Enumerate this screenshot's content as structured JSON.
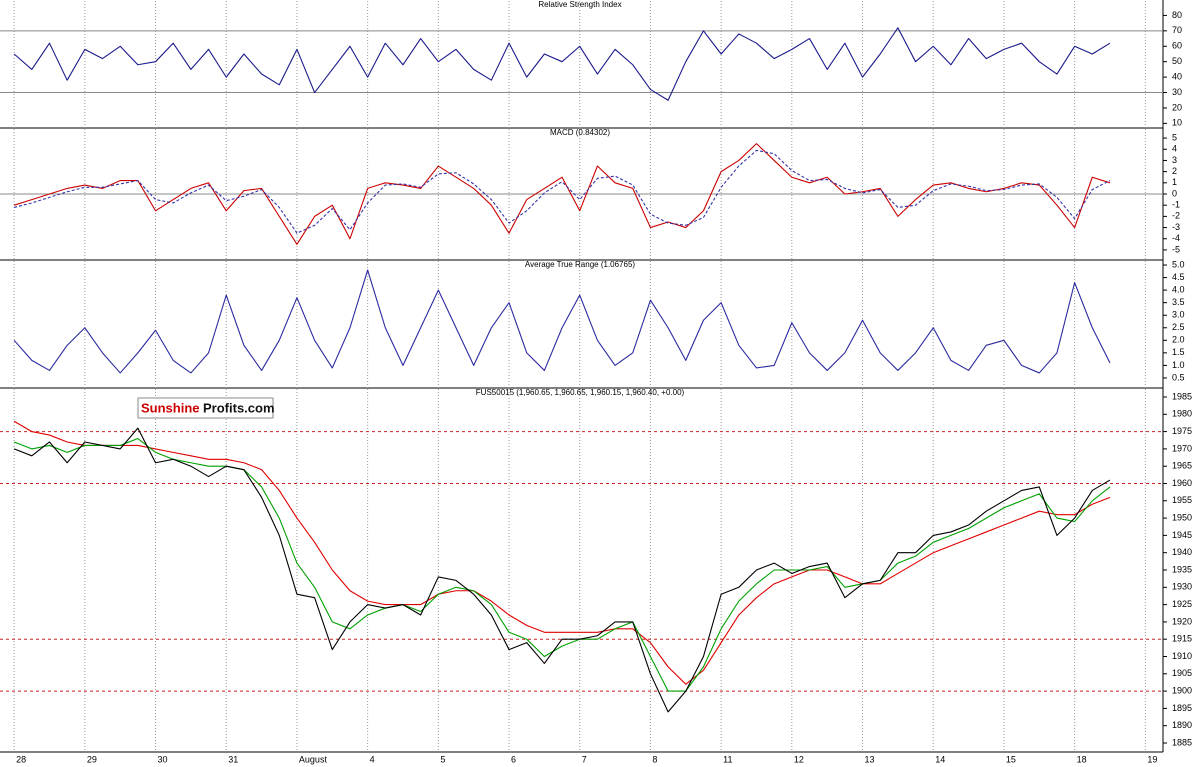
{
  "chart_data": [
    {
      "type": "line",
      "title": "Relative Strength Index",
      "xlim": [
        -0.2,
        16.25
      ],
      "ylim": [
        7,
        90
      ],
      "yticks": [
        10,
        20,
        30,
        40,
        50,
        60,
        70,
        80
      ],
      "reference_lines": [
        70,
        30
      ],
      "reference_color": "#888888",
      "reference_dashed": false,
      "x": [
        0,
        0.25,
        0.5,
        0.75,
        1,
        1.25,
        1.5,
        1.75,
        2,
        2.25,
        2.5,
        2.75,
        3,
        3.25,
        3.5,
        3.75,
        4,
        4.25,
        4.5,
        4.75,
        5,
        5.25,
        5.5,
        5.75,
        6,
        6.25,
        6.5,
        6.75,
        7,
        7.25,
        7.5,
        7.75,
        8,
        8.25,
        8.5,
        8.75,
        9,
        9.25,
        9.5,
        9.75,
        10,
        10.25,
        10.5,
        10.75,
        11,
        11.25,
        11.5,
        11.75,
        12,
        12.25,
        12.5,
        12.75,
        13,
        13.25,
        13.5,
        13.75,
        14,
        14.25,
        14.5,
        14.75,
        15,
        15.25,
        15.5
      ],
      "series": [
        {
          "name": "RSI",
          "color": "#1a1a8c",
          "dashed": false,
          "values": [
            55,
            45,
            62,
            38,
            58,
            52,
            60,
            48,
            50,
            62,
            45,
            58,
            40,
            55,
            42,
            35,
            58,
            30,
            45,
            60,
            40,
            62,
            48,
            65,
            50,
            58,
            45,
            38,
            62,
            40,
            55,
            50,
            60,
            42,
            58,
            48,
            32,
            25,
            50,
            70,
            55,
            68,
            62,
            52,
            58,
            65,
            45,
            62,
            40,
            55,
            72,
            50,
            60,
            48,
            65,
            52,
            58,
            62,
            50,
            42,
            60,
            55,
            62
          ]
        }
      ]
    },
    {
      "type": "line",
      "title": "MACD (0.84302)",
      "xlim": [
        -0.2,
        16.25
      ],
      "ylim": [
        -5.9,
        5.9
      ],
      "yticks": [
        -5,
        -4,
        -3,
        -2,
        -1,
        0,
        1,
        2,
        3,
        4,
        5
      ],
      "reference_lines": [
        0
      ],
      "reference_color": "#888888",
      "reference_dashed": false,
      "x": [
        0,
        0.25,
        0.5,
        0.75,
        1,
        1.25,
        1.5,
        1.75,
        2,
        2.25,
        2.5,
        2.75,
        3,
        3.25,
        3.5,
        3.75,
        4,
        4.25,
        4.5,
        4.75,
        5,
        5.25,
        5.5,
        5.75,
        6,
        6.25,
        6.5,
        6.75,
        7,
        7.25,
        7.5,
        7.75,
        8,
        8.25,
        8.5,
        8.75,
        9,
        9.25,
        9.5,
        9.75,
        10,
        10.25,
        10.5,
        10.75,
        11,
        11.25,
        11.5,
        11.75,
        12,
        12.25,
        12.5,
        12.75,
        13,
        13.25,
        13.5,
        13.75,
        14,
        14.25,
        14.5,
        14.75,
        15,
        15.25,
        15.5
      ],
      "series": [
        {
          "name": "MACD",
          "color": "#cc0000",
          "dashed": false,
          "values": [
            -1,
            -0.5,
            0,
            0.5,
            0.8,
            0.5,
            1.2,
            1.2,
            -1.5,
            -0.5,
            0.5,
            1.0,
            -1.5,
            0.3,
            0.5,
            -2,
            -4.5,
            -2,
            -1,
            -4,
            0.5,
            1,
            0.8,
            0.5,
            2.5,
            1.5,
            0.5,
            -1,
            -3.5,
            -0.5,
            0.5,
            1.5,
            -1.5,
            2.5,
            1,
            0.5,
            -3,
            -2.5,
            -3,
            -1.5,
            2,
            3,
            4.5,
            3,
            1.5,
            1,
            1.5,
            0,
            0.2,
            0.5,
            -2,
            -0.5,
            0.8,
            1,
            0.5,
            0.2,
            0.5,
            1,
            0.8,
            -1,
            -3,
            1.5,
            1
          ]
        },
        {
          "name": "Signal",
          "color": "#3333aa",
          "dashed": true,
          "values": [
            -1.2,
            -0.8,
            -0.3,
            0.2,
            0.6,
            0.6,
            0.9,
            1.2,
            -0.5,
            -0.8,
            0.1,
            0.8,
            -0.6,
            -0.2,
            0.4,
            -1.2,
            -3.5,
            -2.8,
            -1.3,
            -3.2,
            -0.8,
            0.8,
            0.9,
            0.6,
            1.8,
            1.9,
            0.9,
            -0.5,
            -2.6,
            -1.5,
            0.1,
            1.1,
            -0.5,
            1.4,
            1.6,
            0.8,
            -1.8,
            -2.6,
            -2.8,
            -2.1,
            0.6,
            2.5,
            3.9,
            3.6,
            2.1,
            1.2,
            1.3,
            0.5,
            0.1,
            0.4,
            -1.2,
            -1.0,
            0.3,
            0.9,
            0.7,
            0.3,
            0.4,
            0.8,
            0.9,
            -0.3,
            -2.2,
            0.4,
            1.2
          ]
        }
      ]
    },
    {
      "type": "line",
      "title": "Average True Range (1.06765)",
      "xlim": [
        -0.2,
        16.25
      ],
      "ylim": [
        0.1,
        5.2
      ],
      "yticks": [
        0.5,
        {
          "value": 1,
          "label": "1.0"
        },
        1.5,
        {
          "value": 2,
          "label": "2.0"
        },
        2.5,
        {
          "value": 3,
          "label": "3.0"
        },
        3.5,
        {
          "value": 4,
          "label": "4.0"
        },
        4.5,
        {
          "value": 5,
          "label": "5.0"
        }
      ],
      "x": [
        0,
        0.25,
        0.5,
        0.75,
        1,
        1.25,
        1.5,
        1.75,
        2,
        2.25,
        2.5,
        2.75,
        3,
        3.25,
        3.5,
        3.75,
        4,
        4.25,
        4.5,
        4.75,
        5,
        5.25,
        5.5,
        5.75,
        6,
        6.25,
        6.5,
        6.75,
        7,
        7.25,
        7.5,
        7.75,
        8,
        8.25,
        8.5,
        8.75,
        9,
        9.25,
        9.5,
        9.75,
        10,
        10.25,
        10.5,
        10.75,
        11,
        11.25,
        11.5,
        11.75,
        12,
        12.25,
        12.5,
        12.75,
        13,
        13.25,
        13.5,
        13.75,
        14,
        14.25,
        14.5,
        14.75,
        15,
        15.25,
        15.5
      ],
      "series": [
        {
          "name": "ATR",
          "color": "#2a2aa0",
          "dashed": false,
          "values": [
            2.0,
            1.2,
            0.8,
            1.8,
            2.5,
            1.5,
            0.7,
            1.5,
            2.4,
            1.2,
            0.7,
            1.5,
            3.8,
            1.8,
            0.8,
            2.0,
            3.7,
            2.0,
            0.9,
            2.5,
            4.8,
            2.5,
            1.0,
            2.5,
            4.0,
            2.5,
            1.0,
            2.5,
            3.5,
            1.5,
            0.8,
            2.5,
            3.8,
            2.0,
            1.0,
            1.5,
            3.6,
            2.5,
            1.2,
            2.8,
            3.5,
            1.8,
            0.9,
            1.0,
            2.7,
            1.5,
            0.8,
            1.5,
            2.8,
            1.5,
            0.8,
            1.5,
            2.5,
            1.2,
            0.8,
            1.8,
            2.0,
            1.0,
            0.7,
            1.5,
            4.3,
            2.5,
            1.1
          ]
        }
      ]
    },
    {
      "type": "line",
      "title": "FUS50015 (1,960.65, 1,960.65, 1,960.15, 1,960.40, +0.00)",
      "xlim": [
        -0.2,
        16.25
      ],
      "ylim": [
        1882.4,
        1987.6
      ],
      "yticks": [
        1885,
        1890,
        1895,
        1900,
        1905,
        1910,
        1915,
        1920,
        1925,
        1930,
        1935,
        1940,
        1945,
        1950,
        1955,
        1960,
        1965,
        1970,
        1975,
        1980,
        1985
      ],
      "reference_lines": [
        1975,
        1960,
        1915,
        1900
      ],
      "reference_color": "#cc2222",
      "reference_dashed": true,
      "xticks": [
        {
          "value": 0,
          "label": "28"
        },
        {
          "value": 1,
          "label": "29"
        },
        {
          "value": 2,
          "label": "30"
        },
        {
          "value": 3,
          "label": "31"
        },
        {
          "value": 4,
          "label": "August"
        },
        {
          "value": 5,
          "label": "4"
        },
        {
          "value": 6,
          "label": "5"
        },
        {
          "value": 7,
          "label": "6"
        },
        {
          "value": 8,
          "label": "7"
        },
        {
          "value": 9,
          "label": "8"
        },
        {
          "value": 10,
          "label": "11"
        },
        {
          "value": 11,
          "label": "12"
        },
        {
          "value": 12,
          "label": "13"
        },
        {
          "value": 13,
          "label": "14"
        },
        {
          "value": 14,
          "label": "15"
        },
        {
          "value": 15,
          "label": "18"
        },
        {
          "value": 16,
          "label": "19"
        }
      ],
      "x": [
        0,
        0.25,
        0.5,
        0.75,
        1,
        1.25,
        1.5,
        1.75,
        2,
        2.25,
        2.5,
        2.75,
        3,
        3.25,
        3.5,
        3.75,
        4,
        4.25,
        4.5,
        4.75,
        5,
        5.25,
        5.5,
        5.75,
        6,
        6.25,
        6.5,
        6.75,
        7,
        7.25,
        7.5,
        7.75,
        8,
        8.25,
        8.5,
        8.75,
        9,
        9.25,
        9.5,
        9.75,
        10,
        10.25,
        10.5,
        10.75,
        11,
        11.25,
        11.5,
        11.75,
        12,
        12.25,
        12.5,
        12.75,
        13,
        13.25,
        13.5,
        13.75,
        14,
        14.25,
        14.5,
        14.75,
        15,
        15.25,
        15.5
      ],
      "series": [
        {
          "name": "Slow MA",
          "color": "#e00000",
          "dashed": false,
          "values": [
            1978,
            1975,
            1974,
            1972,
            1971,
            1971,
            1971,
            1971,
            1970,
            1969,
            1968,
            1967,
            1967,
            1966,
            1964,
            1958,
            1950,
            1943,
            1935,
            1929,
            1926,
            1925,
            1925,
            1925,
            1928,
            1929,
            1929,
            1926,
            1922,
            1919,
            1917,
            1917,
            1917,
            1917,
            1918,
            1918,
            1914,
            1907,
            1902,
            1906,
            1914,
            1922,
            1927,
            1931,
            1933,
            1935,
            1935,
            1933,
            1931,
            1931,
            1934,
            1937,
            1940,
            1942,
            1944,
            1946,
            1948,
            1950,
            1952,
            1951,
            1951,
            1954,
            1956
          ]
        },
        {
          "name": "Fast MA",
          "color": "#00a000",
          "dashed": false,
          "values": [
            1972,
            1970,
            1971,
            1969,
            1971,
            1971,
            1971,
            1973,
            1969,
            1967,
            1966,
            1965,
            1965,
            1964,
            1959,
            1950,
            1937,
            1930,
            1920,
            1918,
            1922,
            1924,
            1925,
            1923,
            1928,
            1930,
            1929,
            1925,
            1917,
            1915,
            1910,
            1913,
            1915,
            1915,
            1918,
            1920,
            1910,
            1900,
            1900,
            1907,
            1918,
            1926,
            1931,
            1935,
            1935,
            1935,
            1936,
            1930,
            1931,
            1932,
            1937,
            1939,
            1943,
            1945,
            1947,
            1950,
            1953,
            1955,
            1957,
            1950,
            1949,
            1955,
            1959
          ]
        },
        {
          "name": "Price",
          "color": "#000000",
          "dashed": false,
          "values": [
            1970,
            1968,
            1972,
            1966,
            1972,
            1971,
            1970,
            1976,
            1966,
            1967,
            1965,
            1962,
            1965,
            1964,
            1956,
            1945,
            1928,
            1927,
            1912,
            1920,
            1925,
            1924,
            1925,
            1922,
            1933,
            1932,
            1928,
            1922,
            1912,
            1914,
            1908,
            1915,
            1915,
            1916,
            1920,
            1920,
            1905,
            1894,
            1900,
            1910,
            1928,
            1930,
            1935,
            1937,
            1934,
            1936,
            1937,
            1927,
            1931,
            1932,
            1940,
            1940,
            1945,
            1946,
            1948,
            1952,
            1955,
            1958,
            1959,
            1945,
            1950,
            1958,
            1961
          ]
        }
      ]
    }
  ],
  "logo": {
    "part1": "Sunshine",
    "part2": "Profits.com"
  }
}
